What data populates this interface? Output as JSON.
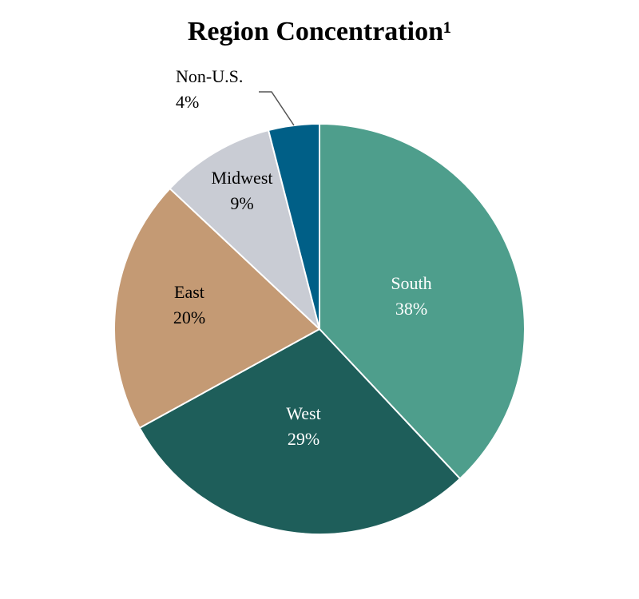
{
  "chart_data": {
    "type": "pie",
    "title": "Region Concentration¹",
    "categories": [
      "South",
      "West",
      "East",
      "Midwest",
      "Non-U.S."
    ],
    "values": [
      38,
      29,
      20,
      9,
      4
    ],
    "value_labels": [
      "38%",
      "29%",
      "20%",
      "9%",
      "4%"
    ],
    "colors": [
      "#4e9e8c",
      "#1e5e5a",
      "#c49a74",
      "#c9ccd4",
      "#005f87"
    ]
  }
}
